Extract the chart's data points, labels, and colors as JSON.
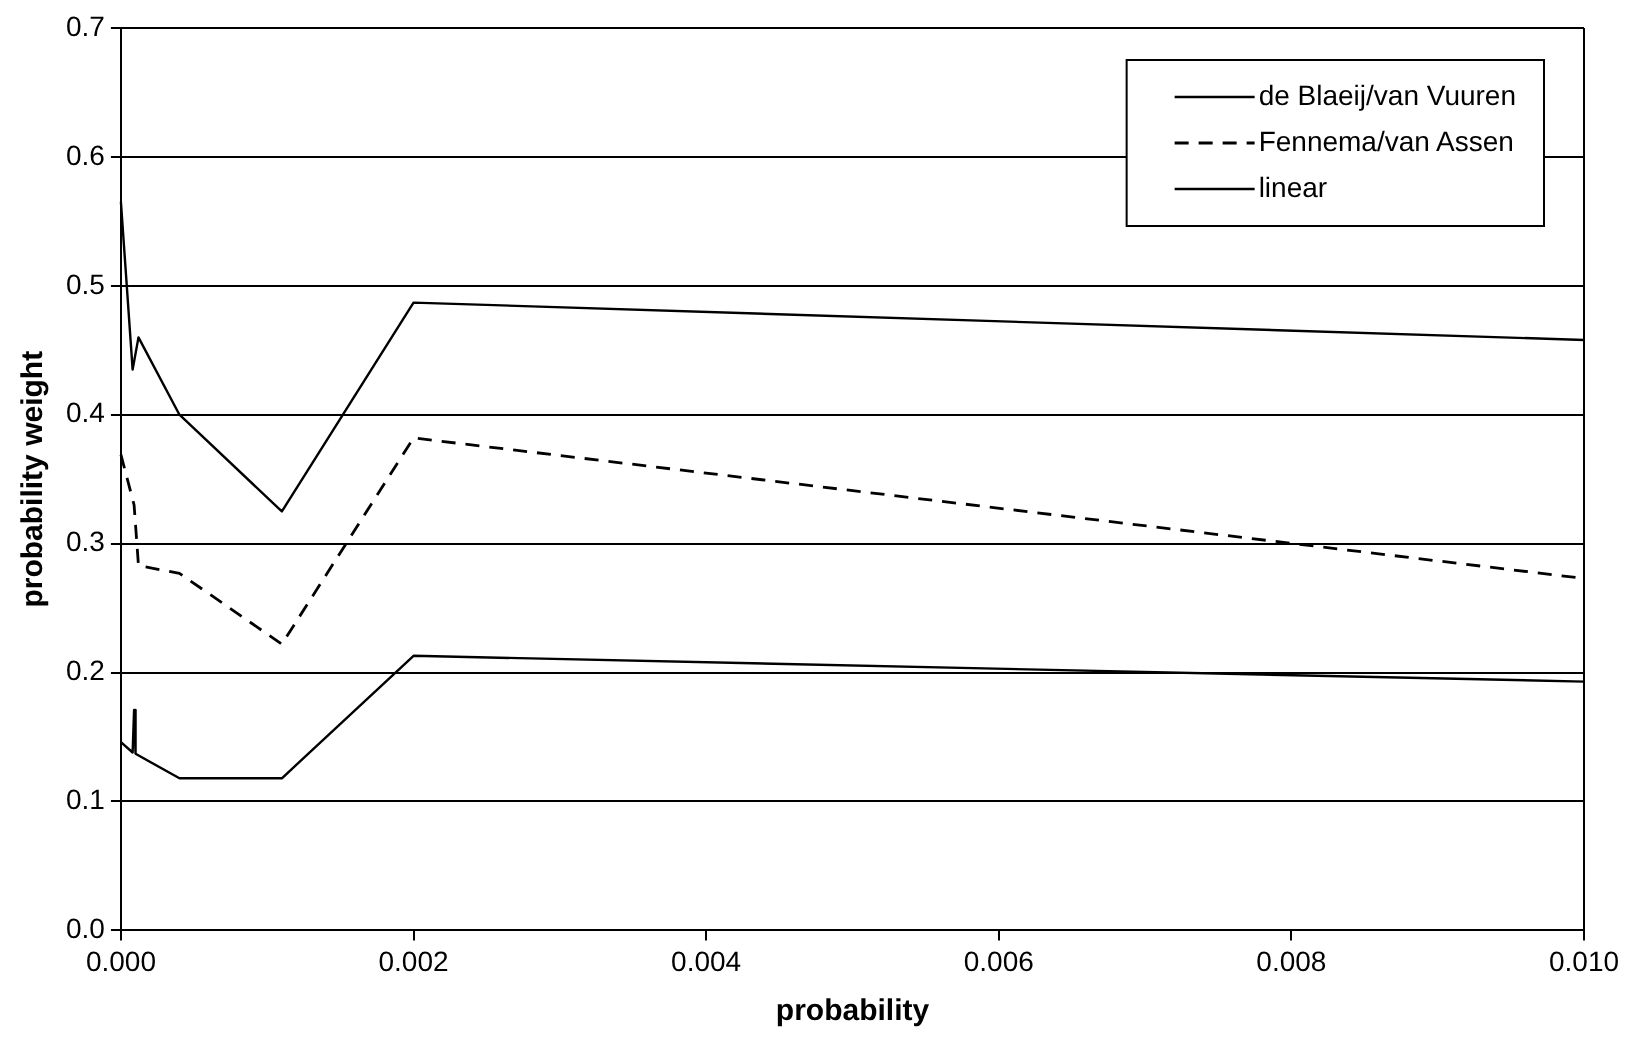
{
  "chart_data": {
    "type": "line",
    "xlabel": "probability",
    "ylabel": "probability weight",
    "xlim": [
      0,
      0.01
    ],
    "xticks": [
      {
        "value": 0,
        "label": "0.000"
      },
      {
        "value": 0.002,
        "label": "0.002"
      },
      {
        "value": 0.004,
        "label": "0.004"
      },
      {
        "value": 0.006,
        "label": "0.006"
      },
      {
        "value": 0.008,
        "label": "0.008"
      },
      {
        "value": 0.01,
        "label": "0.010"
      }
    ],
    "ylim": [
      0,
      0.7
    ],
    "yticks": [
      {
        "value": 0,
        "label": "0.0"
      },
      {
        "value": 0.1,
        "label": "0.1"
      },
      {
        "value": 0.2,
        "label": "0.2"
      },
      {
        "value": 0.3,
        "label": "0.3"
      },
      {
        "value": 0.4,
        "label": "0.4"
      },
      {
        "value": 0.5,
        "label": "0.5"
      },
      {
        "value": 0.6,
        "label": "0.6"
      },
      {
        "value": 0.7,
        "label": "0.7"
      }
    ],
    "grid": "y",
    "legend": "top right",
    "marker": "none",
    "series": [
      {
        "name": "de Blaeij/van Vuuren",
        "color": "#000000",
        "line_style": "solid",
        "x": [
          0,
          8e-05,
          0.00012,
          0.0004,
          0.0011,
          0.002,
          0.01
        ],
        "values": [
          0.565,
          0.435,
          0.46,
          0.4,
          0.325,
          0.487,
          0.458
        ]
      },
      {
        "name": "Fennema/van Assen",
        "color": "#000000",
        "line_style": "dashed",
        "x": [
          0,
          9e-05,
          0.00012,
          0.0004,
          0.0011,
          0.002,
          0.01
        ],
        "values": [
          0.369,
          0.33,
          0.283,
          0.277,
          0.222,
          0.382,
          0.273
        ]
      },
      {
        "name": "linear",
        "color": "#000000",
        "line_style": "solid",
        "x": [
          0,
          8e-05,
          9e-05,
          0.0001,
          0.0004,
          0.0011,
          0.002,
          0.01
        ],
        "values": [
          0.146,
          0.138,
          0.171,
          0.137,
          0.118,
          0.118,
          0.213,
          0.193
        ]
      }
    ]
  }
}
